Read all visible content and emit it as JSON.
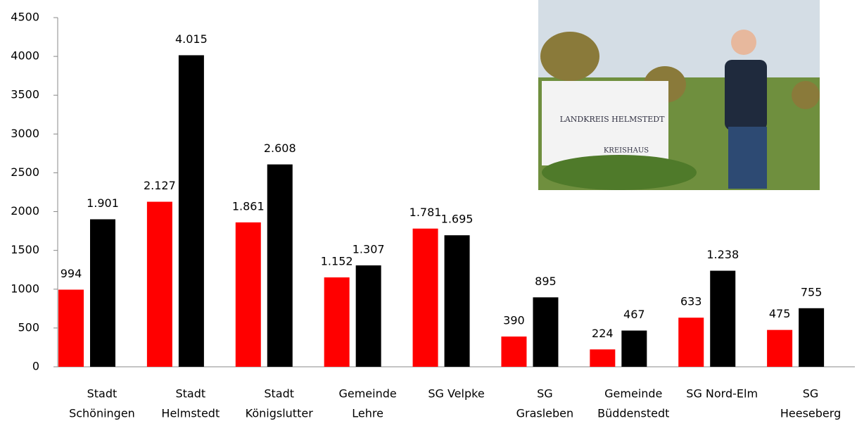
{
  "chart_data": {
    "type": "bar",
    "categories": [
      [
        "Stadt",
        "Schöningen"
      ],
      [
        "Stadt",
        "Helmstedt"
      ],
      [
        "Stadt",
        "Königslutter"
      ],
      [
        "Gemeinde",
        "Lehre"
      ],
      [
        "SG Velpke"
      ],
      [
        "SG",
        "Grasleben"
      ],
      [
        "Gemeinde",
        "Büddenstedt"
      ],
      [
        "SG Nord-Elm"
      ],
      [
        "SG",
        "Heeseberg"
      ]
    ],
    "series": [
      {
        "color": "#ff0000",
        "values": [
          994,
          2127,
          1861,
          1152,
          1781,
          390,
          224,
          633,
          475
        ],
        "value_labels": [
          "994",
          "2.127",
          "1.861",
          "1.152",
          "1.781",
          "390",
          "224",
          "633",
          "475"
        ]
      },
      {
        "color": "#000000",
        "values": [
          1901,
          4015,
          2608,
          1307,
          1695,
          895,
          467,
          1238,
          755
        ],
        "value_labels": [
          "1.901",
          "4.015",
          "2.608",
          "1.307",
          "1.695",
          "895",
          "467",
          "1.238",
          "755"
        ]
      }
    ],
    "ylim": [
      0,
      4500
    ],
    "yticks": [
      0,
      500,
      1000,
      1500,
      2000,
      2500,
      3000,
      3500,
      4000,
      4500
    ],
    "grid": false
  },
  "photo": {
    "sign_text": "LANDKREIS HELMSTEDT",
    "sign_subtext": "KREISHAUS"
  }
}
